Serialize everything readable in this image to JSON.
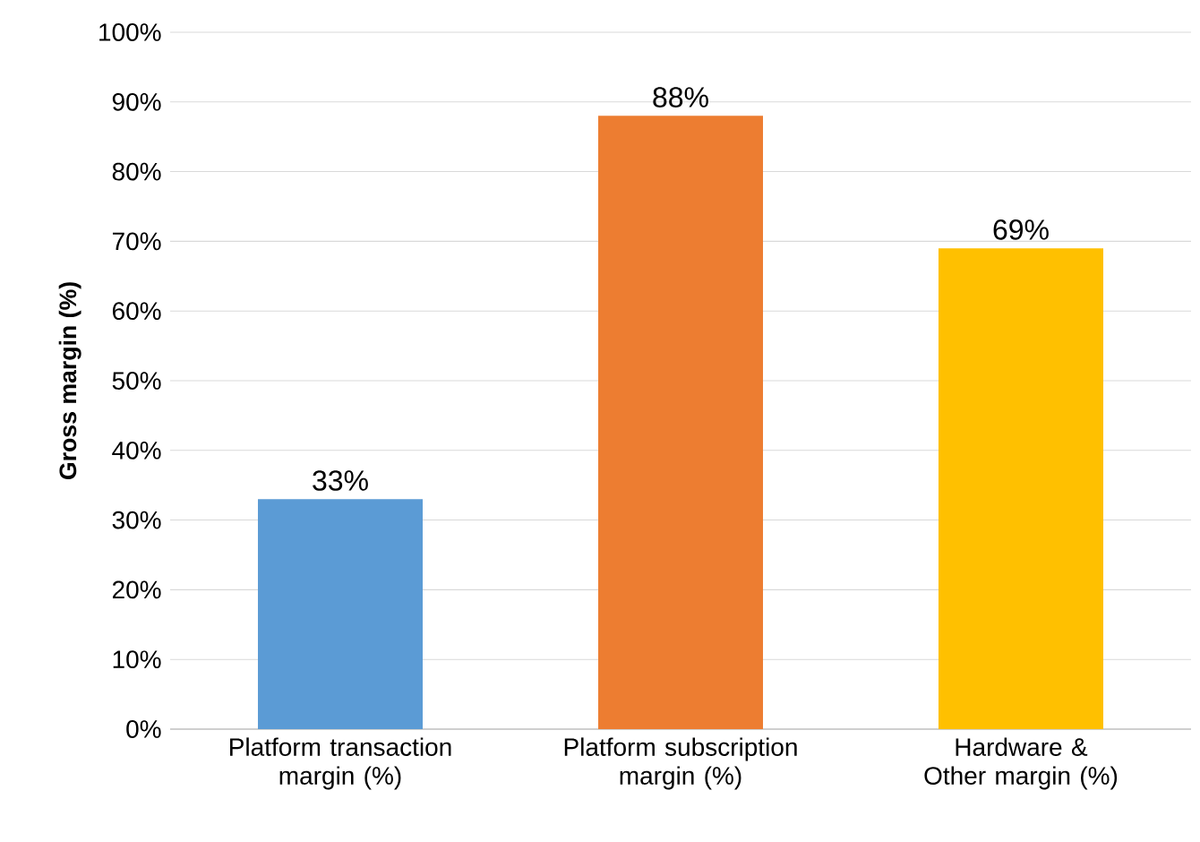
{
  "chart_data": {
    "type": "bar",
    "ylabel": "Gross margin (%)",
    "categories": [
      "Platform transaction margin (%)",
      "Platform subscription margin (%)",
      "Hardware & Other margin (%)"
    ],
    "values": [
      33,
      88,
      69
    ],
    "colors": [
      "#5b9bd5",
      "#ed7d31",
      "#ffc000"
    ],
    "value_labels": [
      "33%",
      "88%",
      "69%"
    ],
    "ylim": [
      0,
      100
    ],
    "yticks": [
      {
        "value": 0,
        "label": "0%"
      },
      {
        "value": 10,
        "label": "10%"
      },
      {
        "value": 20,
        "label": "20%"
      },
      {
        "value": 30,
        "label": "30%"
      },
      {
        "value": 40,
        "label": "40%"
      },
      {
        "value": 50,
        "label": "50%"
      },
      {
        "value": 60,
        "label": "60%"
      },
      {
        "value": 70,
        "label": "70%"
      },
      {
        "value": 80,
        "label": "80%"
      },
      {
        "value": 90,
        "label": "90%"
      },
      {
        "value": 100,
        "label": "100%"
      }
    ],
    "grid": "y"
  }
}
